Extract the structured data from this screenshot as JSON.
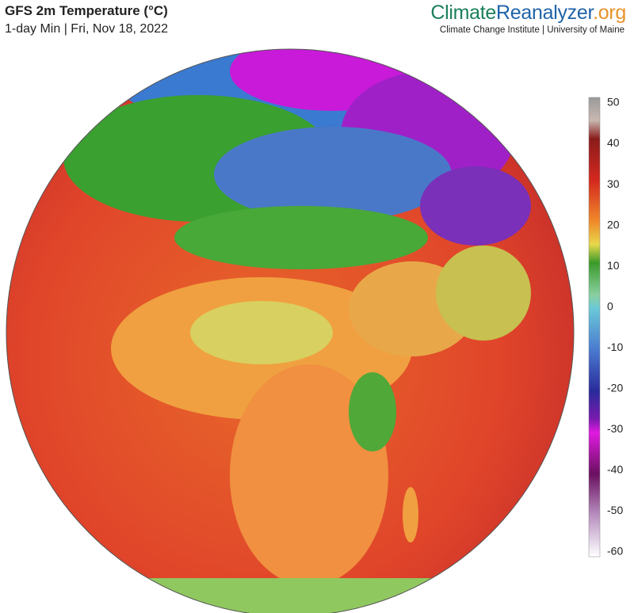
{
  "header": {
    "title": "GFS 2m Temperature (°C)",
    "subtitle": "1-day Min | Fri, Nov 18, 2022"
  },
  "logo": {
    "parts": [
      "Climate",
      "Reanalyzer",
      ".org"
    ],
    "tagline": "Climate Change Institute | University of Maine"
  },
  "colorbar": {
    "ticks": [
      50,
      40,
      30,
      20,
      10,
      0,
      -10,
      -20,
      -30,
      -40,
      -50,
      -60
    ]
  }
}
